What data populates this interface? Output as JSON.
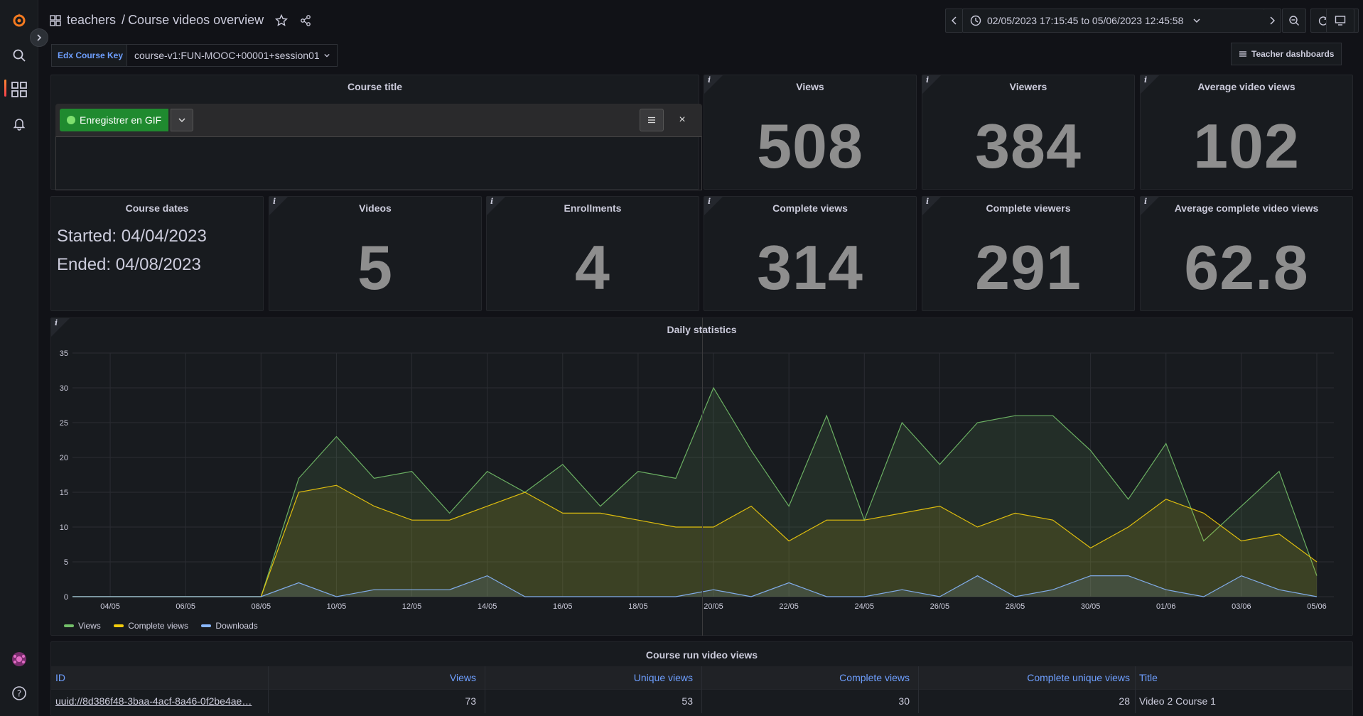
{
  "breadcrumb": {
    "folder": "teachers",
    "separator": "/",
    "title": "Course videos overview"
  },
  "time_range": {
    "label": "02/05/2023 17:15:45 to 05/06/2023 12:45:58"
  },
  "variable": {
    "label": "Edx Course Key",
    "value": "course-v1:FUN-MOOC+00001+session01"
  },
  "teacher_dashboards_label": "Teacher dashboards",
  "gif_recorder": {
    "record_label": "Enregistrer en GIF",
    "close_label": "×"
  },
  "panels": {
    "course_title": {
      "title": "Course title"
    },
    "views": {
      "title": "Views",
      "value": "508"
    },
    "viewers": {
      "title": "Viewers",
      "value": "384"
    },
    "avg_video_views": {
      "title": "Average video views",
      "value": "102"
    },
    "course_dates": {
      "title": "Course dates",
      "started": "Started: 04/04/2023",
      "ended": "Ended: 04/08/2023"
    },
    "videos": {
      "title": "Videos",
      "value": "5"
    },
    "enrollments": {
      "title": "Enrollments",
      "value": "4"
    },
    "complete_views": {
      "title": "Complete views",
      "value": "314"
    },
    "complete_viewers": {
      "title": "Complete viewers",
      "value": "291"
    },
    "avg_complete_views": {
      "title": "Average complete video views",
      "value": "62.8"
    },
    "daily": {
      "title": "Daily statistics"
    },
    "table": {
      "title": "Course run video views"
    }
  },
  "info_glyph": "i",
  "table": {
    "columns": [
      "ID",
      "Views",
      "Unique views",
      "Complete views",
      "Complete unique views",
      "Title"
    ],
    "rows": [
      [
        "uuid://8d386f48-3baa-4acf-8a46-0f2be4ae…",
        "73",
        "53",
        "30",
        "28",
        "Video 2 Course 1"
      ]
    ]
  },
  "colors": {
    "views": "#73bf69",
    "complete_views": "#f2cc0c",
    "downloads": "#8ab8ff",
    "accent": "#6e9fff"
  },
  "chart_data": {
    "type": "area",
    "title": "Daily statistics",
    "x_ticks": [
      "04/05",
      "06/05",
      "08/05",
      "10/05",
      "12/05",
      "14/05",
      "16/05",
      "18/05",
      "20/05",
      "22/05",
      "24/05",
      "26/05",
      "28/05",
      "30/05",
      "01/06",
      "03/06",
      "05/06"
    ],
    "y_ticks": [
      0,
      5,
      10,
      15,
      20,
      25,
      30,
      35
    ],
    "ylim": [
      0,
      35
    ],
    "x": [
      "03/05",
      "04/05",
      "05/05",
      "06/05",
      "07/05",
      "08/05",
      "09/05",
      "10/05",
      "11/05",
      "12/05",
      "13/05",
      "14/05",
      "15/05",
      "16/05",
      "17/05",
      "18/05",
      "19/05",
      "20/05",
      "21/05",
      "22/05",
      "23/05",
      "24/05",
      "25/05",
      "26/05",
      "27/05",
      "28/05",
      "29/05",
      "30/05",
      "31/05",
      "01/06",
      "02/06",
      "03/06",
      "04/06",
      "05/06"
    ],
    "series": [
      {
        "name": "Views",
        "values": [
          0,
          0,
          0,
          0,
          0,
          0,
          17,
          23,
          17,
          18,
          12,
          18,
          15,
          19,
          13,
          18,
          17,
          30,
          21,
          13,
          26,
          11,
          25,
          19,
          25,
          26,
          26,
          21,
          14,
          22,
          8,
          13,
          18,
          3
        ]
      },
      {
        "name": "Complete views",
        "values": [
          0,
          0,
          0,
          0,
          0,
          0,
          15,
          16,
          13,
          11,
          11,
          13,
          15,
          12,
          12,
          11,
          10,
          10,
          13,
          8,
          11,
          11,
          12,
          13,
          10,
          12,
          11,
          7,
          10,
          14,
          12,
          8,
          9,
          5
        ]
      },
      {
        "name": "Downloads",
        "values": [
          0,
          0,
          0,
          0,
          0,
          0,
          2,
          0,
          1,
          1,
          1,
          3,
          0,
          0,
          0,
          0,
          0,
          1,
          0,
          2,
          0,
          0,
          1,
          0,
          3,
          0,
          1,
          3,
          3,
          1,
          0,
          3,
          1,
          0
        ]
      }
    ],
    "grid": true,
    "legend": "bottom-left"
  }
}
